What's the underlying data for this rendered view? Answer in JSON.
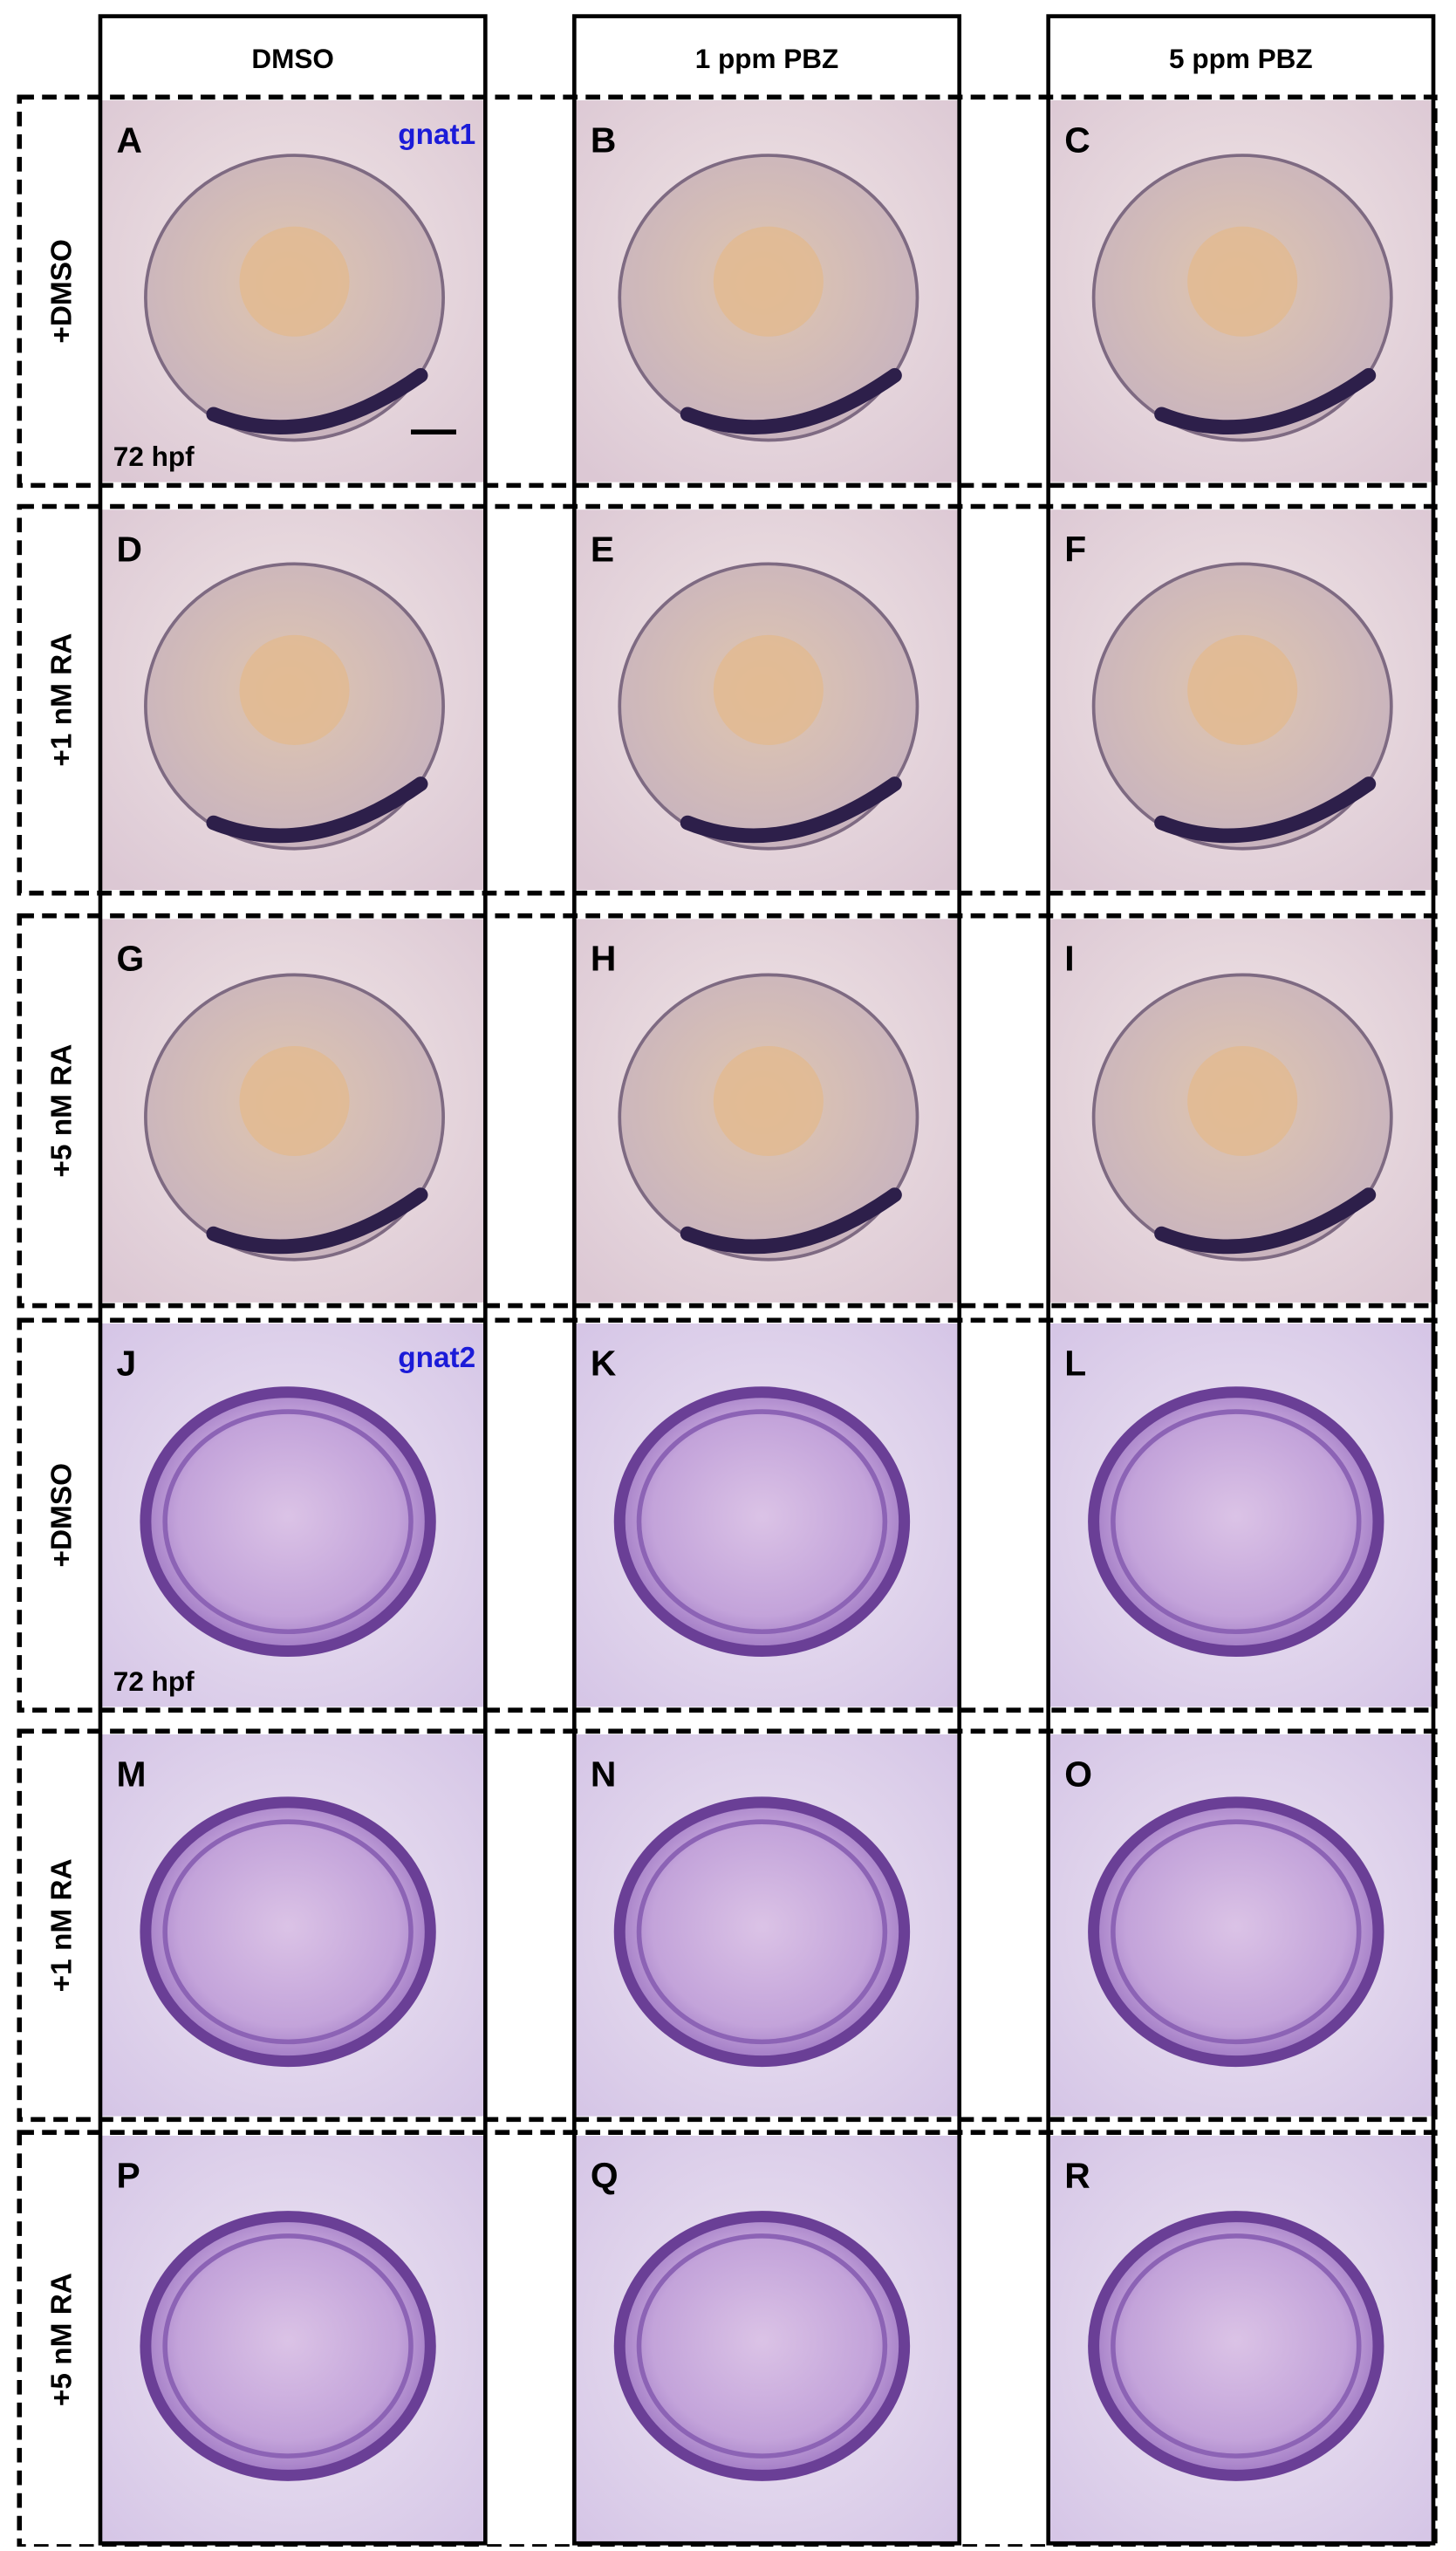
{
  "columns": [
    "DMSO",
    "1 ppm PBZ",
    "5 ppm PBZ"
  ],
  "rows": [
    {
      "label": "+DMSO",
      "panels": [
        {
          "letter": "A",
          "gene": "gnat1",
          "stage": "72 hpf"
        },
        {
          "letter": "B"
        },
        {
          "letter": "C"
        }
      ]
    },
    {
      "label": "+1 nM RA",
      "panels": [
        {
          "letter": "D"
        },
        {
          "letter": "E"
        },
        {
          "letter": "F"
        }
      ]
    },
    {
      "label": "+5 nM RA",
      "panels": [
        {
          "letter": "G"
        },
        {
          "letter": "H"
        },
        {
          "letter": "I"
        }
      ]
    },
    {
      "label": "+DMSO",
      "panels": [
        {
          "letter": "J",
          "gene": "gnat2",
          "stage": "72 hpf"
        },
        {
          "letter": "K"
        },
        {
          "letter": "L"
        }
      ]
    },
    {
      "label": "+1 nM RA",
      "panels": [
        {
          "letter": "M"
        },
        {
          "letter": "N"
        },
        {
          "letter": "O"
        }
      ]
    },
    {
      "label": "+5 nM RA",
      "panels": [
        {
          "letter": "P"
        },
        {
          "letter": "Q"
        },
        {
          "letter": "R"
        }
      ]
    }
  ]
}
